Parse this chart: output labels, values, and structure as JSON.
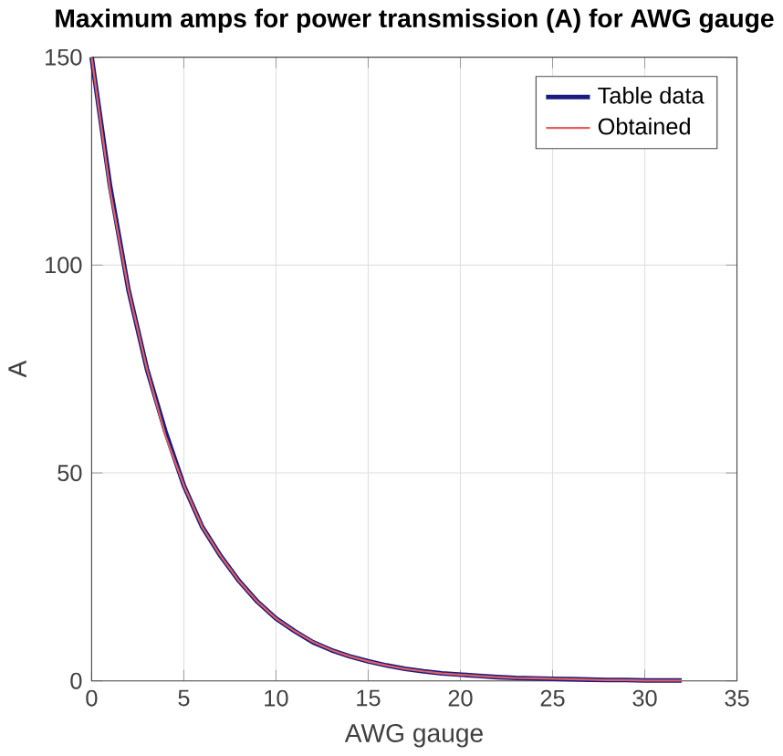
{
  "chart_data": {
    "type": "line",
    "title": "Maximum amps for power transmission (A) for AWG gauge",
    "xlabel": "AWG gauge",
    "ylabel": "A",
    "x": [
      0,
      1,
      2,
      3,
      4,
      5,
      6,
      7,
      8,
      9,
      10,
      11,
      12,
      13,
      14,
      15,
      16,
      17,
      18,
      19,
      20,
      21,
      22,
      23,
      24,
      25,
      26,
      27,
      28,
      29,
      30,
      31,
      32
    ],
    "series": [
      {
        "name": "Table data",
        "color": "#1a1a80",
        "values": [
          150,
          119,
          94,
          75,
          60,
          47,
          37,
          30,
          24,
          19,
          15,
          12,
          9.3,
          7.4,
          5.9,
          4.7,
          3.7,
          2.9,
          2.3,
          1.8,
          1.5,
          1.2,
          0.9,
          0.7,
          0.6,
          0.5,
          0.4,
          0.3,
          0.2,
          0.2,
          0.1,
          0.1,
          0.1
        ]
      },
      {
        "name": "Obtained",
        "color": "#e06060",
        "values": [
          150,
          118,
          94,
          75,
          59,
          47,
          37,
          30,
          24,
          19,
          15,
          12,
          9.4,
          7.4,
          5.9,
          4.7,
          3.7,
          2.9,
          2.3,
          1.8,
          1.5,
          1.2,
          0.9,
          0.7,
          0.6,
          0.5,
          0.4,
          0.3,
          0.2,
          0.2,
          0.1,
          0.1,
          0.1
        ]
      }
    ],
    "xlim": [
      0,
      35
    ],
    "ylim": [
      0,
      150
    ],
    "xticks": [
      0,
      5,
      10,
      15,
      20,
      25,
      30,
      35
    ],
    "yticks": [
      0,
      50,
      100,
      150
    ],
    "grid": true,
    "legend": "top right",
    "line_style": "solid",
    "marker": "none"
  }
}
